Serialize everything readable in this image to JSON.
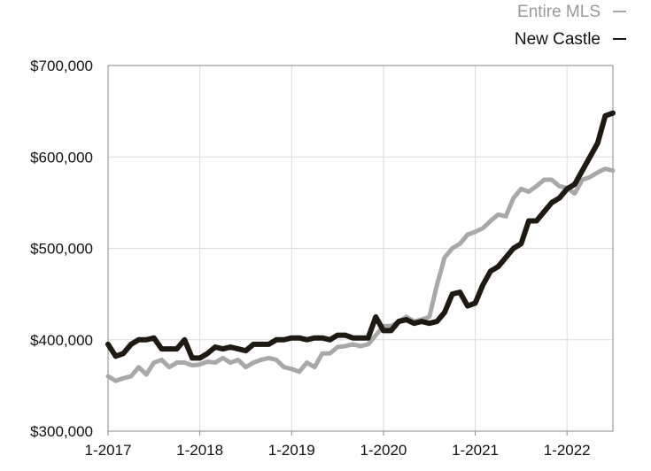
{
  "chart_data": {
    "type": "line",
    "title": "",
    "xlabel": "",
    "ylabel": "",
    "x_ticks": [
      "1-2017",
      "1-2018",
      "1-2019",
      "1-2020",
      "1-2021",
      "1-2022"
    ],
    "y_ticks": [
      "$300,000",
      "$400,000",
      "$500,000",
      "$600,000",
      "$700,000"
    ],
    "y_tick_values": [
      300000,
      400000,
      500000,
      600000,
      700000
    ],
    "ylim": [
      300000,
      700000
    ],
    "xlim": [
      "2017-01",
      "2022-07"
    ],
    "grid": true,
    "legend_position": "top-right",
    "x": [
      "2017-01",
      "2017-02",
      "2017-03",
      "2017-04",
      "2017-05",
      "2017-06",
      "2017-07",
      "2017-08",
      "2017-09",
      "2017-10",
      "2017-11",
      "2017-12",
      "2018-01",
      "2018-02",
      "2018-03",
      "2018-04",
      "2018-05",
      "2018-06",
      "2018-07",
      "2018-08",
      "2018-09",
      "2018-10",
      "2018-11",
      "2018-12",
      "2019-01",
      "2019-02",
      "2019-03",
      "2019-04",
      "2019-05",
      "2019-06",
      "2019-07",
      "2019-08",
      "2019-09",
      "2019-10",
      "2019-11",
      "2019-12",
      "2020-01",
      "2020-02",
      "2020-03",
      "2020-04",
      "2020-05",
      "2020-06",
      "2020-07",
      "2020-08",
      "2020-09",
      "2020-10",
      "2020-11",
      "2020-12",
      "2021-01",
      "2021-02",
      "2021-03",
      "2021-04",
      "2021-05",
      "2021-06",
      "2021-07",
      "2021-08",
      "2021-09",
      "2021-10",
      "2021-11",
      "2021-12",
      "2022-01",
      "2022-02",
      "2022-03",
      "2022-04",
      "2022-05",
      "2022-06",
      "2022-07"
    ],
    "series": [
      {
        "name": "Entire MLS",
        "color": "#a8a8a8",
        "values": [
          360000,
          355000,
          358000,
          360000,
          370000,
          362000,
          375000,
          378000,
          370000,
          375000,
          375000,
          372000,
          373000,
          376000,
          375000,
          380000,
          375000,
          378000,
          370000,
          375000,
          378000,
          380000,
          378000,
          370000,
          368000,
          365000,
          375000,
          370000,
          385000,
          385000,
          392000,
          393000,
          395000,
          393000,
          395000,
          405000,
          415000,
          415000,
          420000,
          425000,
          420000,
          422000,
          425000,
          460000,
          490000,
          500000,
          505000,
          515000,
          518000,
          522000,
          530000,
          537000,
          535000,
          555000,
          565000,
          562000,
          568000,
          575000,
          575000,
          568000,
          566000,
          560000,
          575000,
          578000,
          583000,
          587000,
          585000
        ]
      },
      {
        "name": "New Castle",
        "color": "#1e1a12",
        "values": [
          395000,
          382000,
          385000,
          395000,
          400000,
          400000,
          402000,
          390000,
          390000,
          390000,
          400000,
          380000,
          380000,
          385000,
          392000,
          390000,
          392000,
          390000,
          388000,
          395000,
          395000,
          395000,
          400000,
          400000,
          402000,
          402000,
          400000,
          402000,
          402000,
          400000,
          405000,
          405000,
          402000,
          402000,
          402000,
          425000,
          410000,
          410000,
          420000,
          422000,
          418000,
          420000,
          418000,
          420000,
          430000,
          450000,
          452000,
          437000,
          440000,
          460000,
          475000,
          480000,
          490000,
          500000,
          505000,
          530000,
          530000,
          540000,
          550000,
          555000,
          565000,
          570000,
          585000,
          600000,
          615000,
          645000,
          648000
        ]
      }
    ]
  }
}
